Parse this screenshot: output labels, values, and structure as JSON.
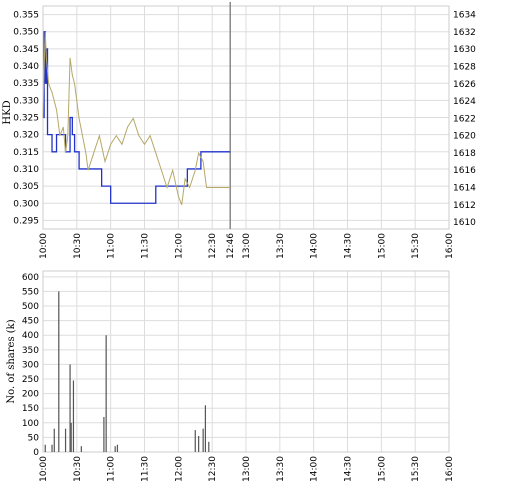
{
  "chart_data": [
    {
      "type": "line",
      "ylabel": "HKD",
      "y2label": "",
      "x_ticks": [
        "10:00",
        "10:30",
        "11:00",
        "11:30",
        "12:00",
        "12:30",
        "12:46",
        "13:00",
        "13:30",
        "14:00",
        "14:30",
        "15:00",
        "15:30",
        "16:00"
      ],
      "y_ticks": [
        "0.355",
        "0.350",
        "0.345",
        "0.340",
        "0.335",
        "0.330",
        "0.325",
        "0.320",
        "0.315",
        "0.310",
        "0.305",
        "0.300",
        "0.295"
      ],
      "y2_ticks": [
        "1634",
        "1632",
        "1630",
        "1628",
        "1626",
        "1624",
        "1622",
        "1620",
        "1618",
        "1616",
        "1614",
        "1612",
        "1610"
      ],
      "ylim": [
        0.2925,
        0.3575
      ],
      "y2lim": [
        1609.2,
        1635.0
      ],
      "xlim_minutes": [
        0,
        360
      ],
      "grid": true,
      "marker_time": "12:46",
      "series": [
        {
          "axis": "left",
          "color": "#2233cc",
          "x": [
            "10:00",
            "10:01",
            "10:02",
            "10:03",
            "10:04",
            "10:06",
            "10:08",
            "10:12",
            "10:15",
            "10:20",
            "10:24",
            "10:26",
            "10:28",
            "10:32",
            "10:35",
            "10:40",
            "10:45",
            "10:52",
            "10:58",
            "11:00",
            "11:10",
            "11:20",
            "11:30",
            "11:40",
            "11:45",
            "11:50",
            "11:55",
            "12:00",
            "12:05",
            "12:08",
            "12:10",
            "12:12",
            "12:18",
            "12:20",
            "12:46"
          ],
          "y": [
            0.325,
            0.35,
            0.335,
            0.345,
            0.32,
            0.32,
            0.315,
            0.32,
            0.32,
            0.315,
            0.325,
            0.32,
            0.315,
            0.31,
            0.31,
            0.31,
            0.31,
            0.305,
            0.305,
            0.3,
            0.3,
            0.3,
            0.3,
            0.305,
            0.305,
            0.305,
            0.305,
            0.305,
            0.305,
            0.31,
            0.31,
            0.31,
            0.31,
            0.315,
            0.315
          ]
        },
        {
          "axis": "right",
          "color": "#b5a868",
          "x": [
            "10:00",
            "10:01",
            "10:02",
            "10:03",
            "10:05",
            "10:08",
            "10:12",
            "10:15",
            "10:18",
            "10:20",
            "10:22",
            "10:24",
            "10:26",
            "10:28",
            "10:30",
            "10:32",
            "10:35",
            "10:38",
            "10:40",
            "10:45",
            "10:50",
            "10:55",
            "11:00",
            "11:05",
            "11:10",
            "11:15",
            "11:20",
            "11:25",
            "11:30",
            "11:35",
            "11:40",
            "11:45",
            "11:50",
            "11:55",
            "12:00",
            "12:03",
            "12:06",
            "12:10",
            "12:15",
            "12:18",
            "12:22",
            "12:25",
            "12:30",
            "12:46"
          ],
          "y": [
            1622,
            1628,
            1632,
            1629,
            1626,
            1625,
            1623,
            1620,
            1621,
            1618,
            1620,
            1629,
            1627,
            1626,
            1624,
            1622,
            1620,
            1618,
            1616,
            1618,
            1620,
            1617,
            1619,
            1620,
            1619,
            1621,
            1622,
            1620,
            1619,
            1620,
            1618,
            1616,
            1614,
            1616,
            1613,
            1612,
            1615,
            1614,
            1616,
            1618,
            1617,
            1614,
            1614,
            1614
          ]
        }
      ]
    },
    {
      "type": "bar",
      "ylabel": "No. of shares (k)",
      "x_ticks": [
        "10:00",
        "10:30",
        "11:00",
        "11:30",
        "12:00",
        "12:30",
        "13:00",
        "13:30",
        "14:00",
        "14:30",
        "15:00",
        "15:30",
        "16:00"
      ],
      "y_ticks": [
        "600",
        "550",
        "500",
        "450",
        "400",
        "350",
        "300",
        "250",
        "200",
        "150",
        "100",
        "50",
        "0"
      ],
      "ylim": [
        0,
        620
      ],
      "xlim_minutes": [
        0,
        360
      ],
      "grid": true,
      "color": "#555555",
      "bars": {
        "x": [
          "10:02",
          "10:08",
          "10:10",
          "10:14",
          "10:20",
          "10:24",
          "10:25",
          "10:27",
          "10:34",
          "10:54",
          "10:56",
          "11:04",
          "11:06",
          "12:15",
          "12:18",
          "12:22",
          "12:24",
          "12:27"
        ],
        "values": [
          25,
          25,
          80,
          550,
          80,
          300,
          100,
          245,
          20,
          120,
          400,
          20,
          25,
          75,
          55,
          80,
          160,
          35
        ]
      }
    }
  ]
}
